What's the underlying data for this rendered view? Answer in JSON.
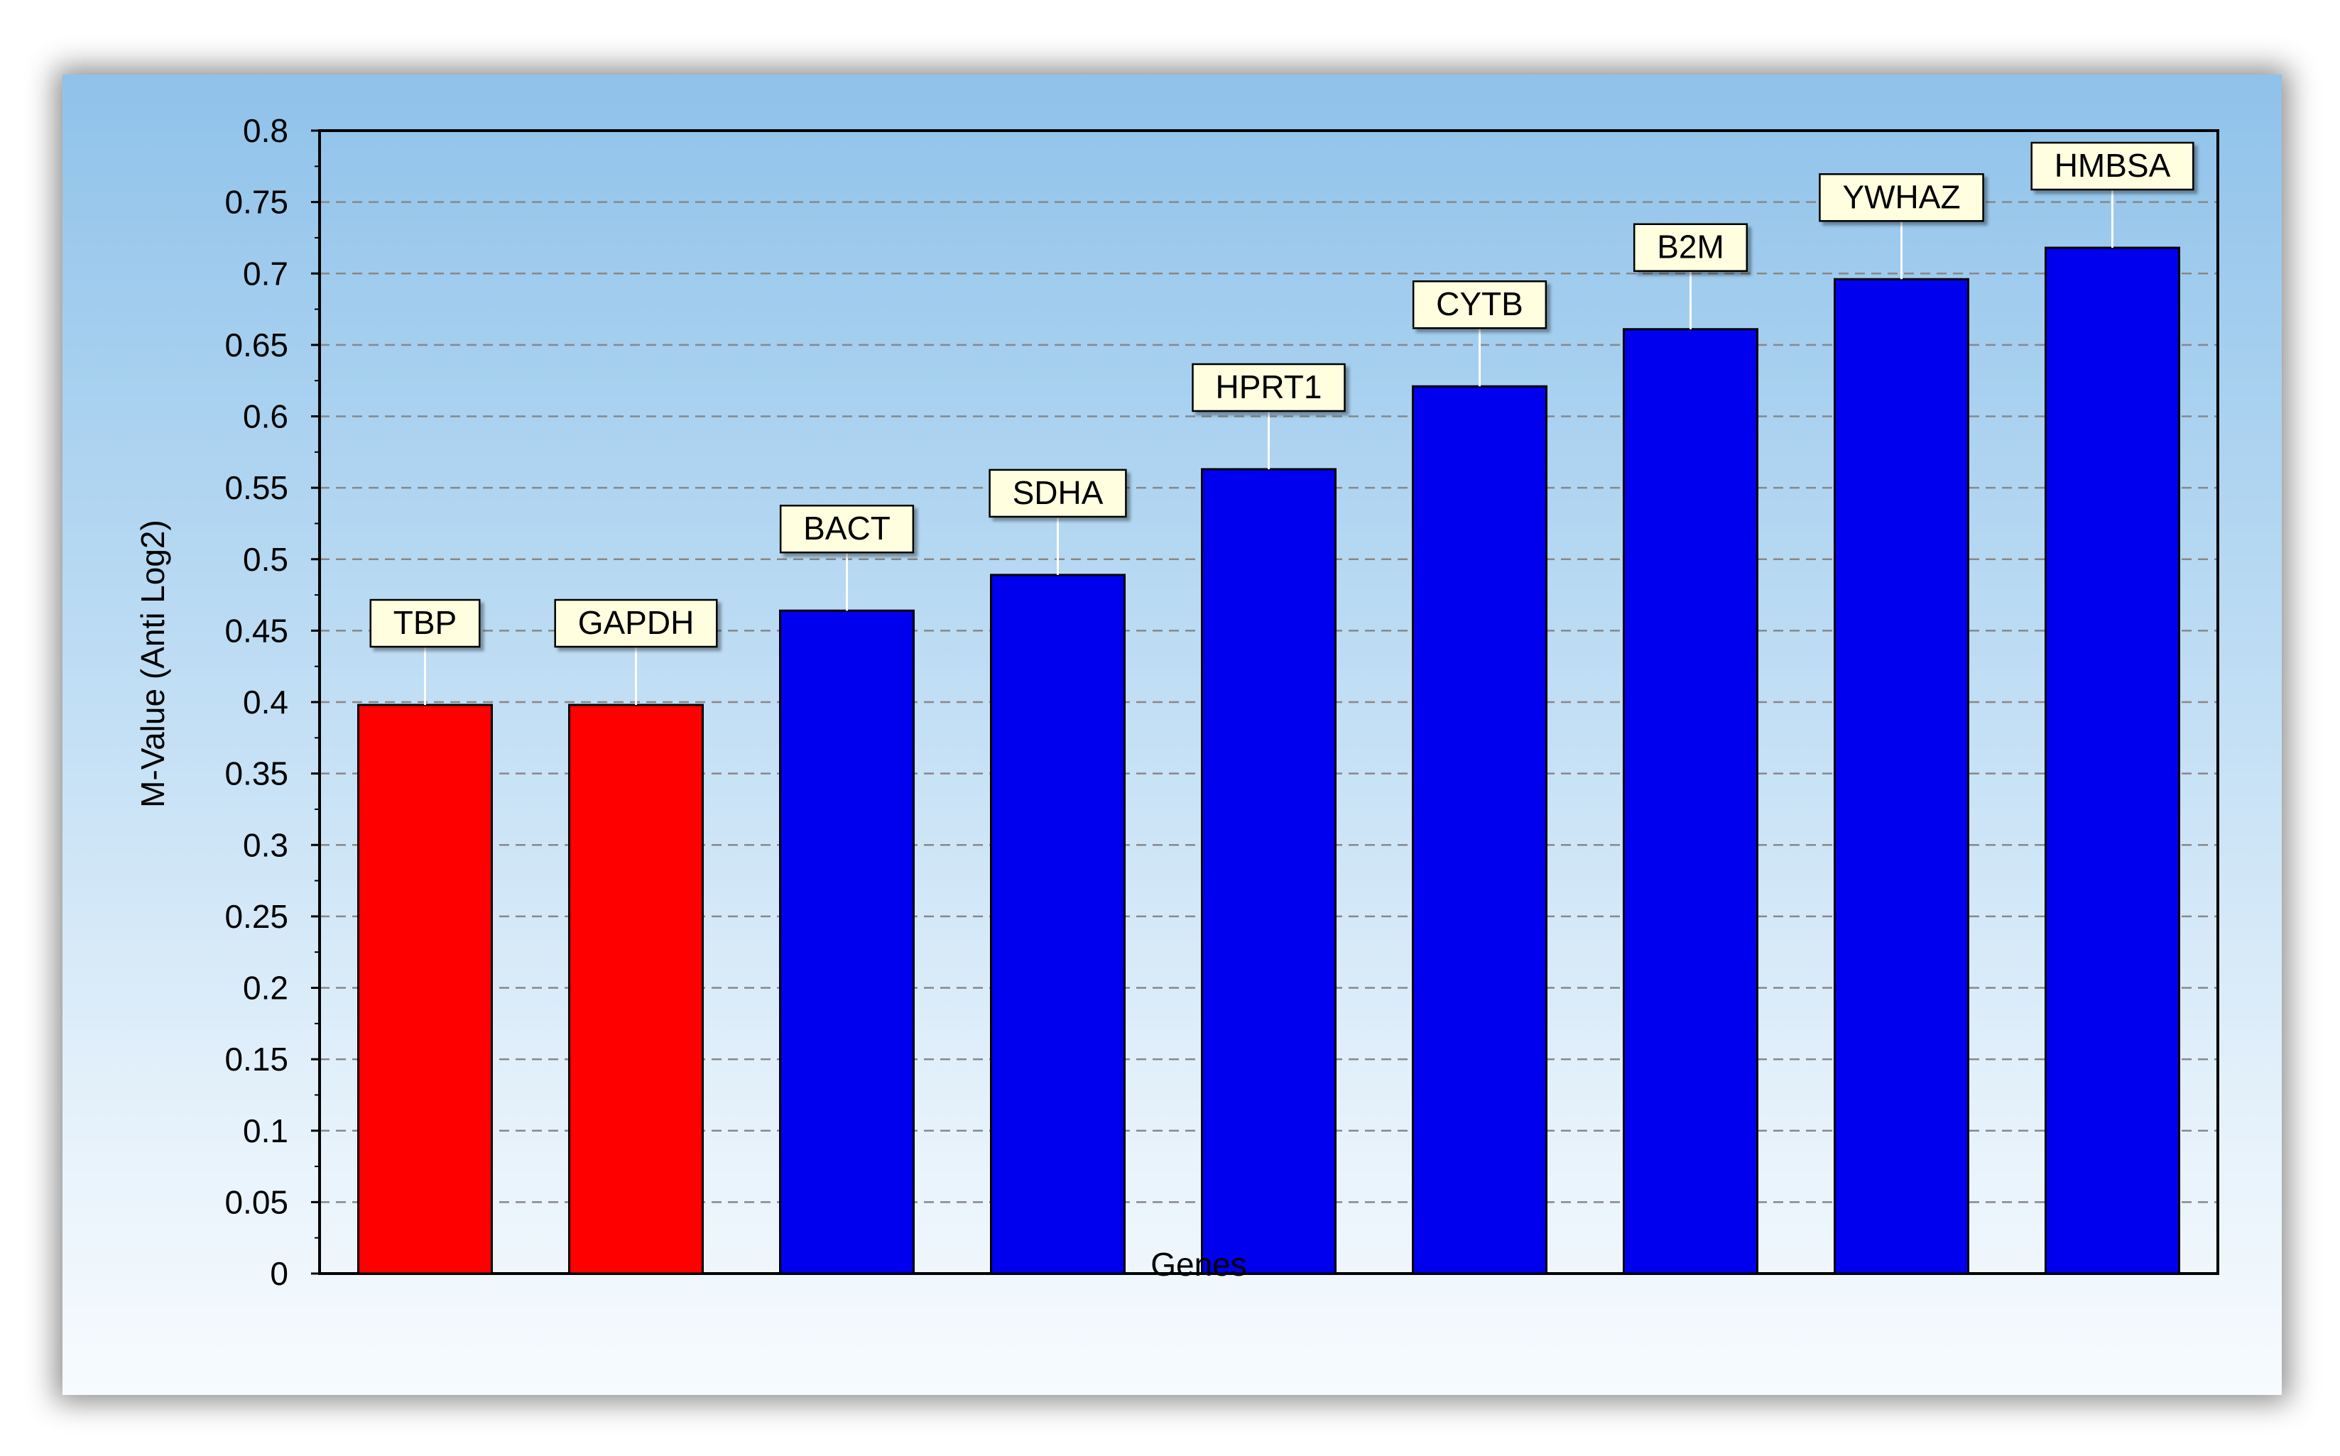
{
  "chart_data": {
    "type": "bar",
    "title": "",
    "xlabel": "Genes",
    "ylabel": "M-Value (Anti Log2)",
    "ylim": [
      0,
      0.8
    ],
    "ytick_step": 0.05,
    "grid": true,
    "categories": [
      "TBP",
      "GAPDH",
      "BACT",
      "SDHA",
      "HPRT1",
      "CYTB",
      "B2M",
      "YWHAZ",
      "HMBSA"
    ],
    "values": [
      0.398,
      0.398,
      0.464,
      0.489,
      0.563,
      0.621,
      0.661,
      0.696,
      0.718
    ],
    "bar_colors": [
      "#ff0000",
      "#ff0000",
      "#0000ee",
      "#0000ee",
      "#0000ee",
      "#0000ee",
      "#0000ee",
      "#0000ee",
      "#0000ee"
    ],
    "label_background": "#ffffe0"
  }
}
